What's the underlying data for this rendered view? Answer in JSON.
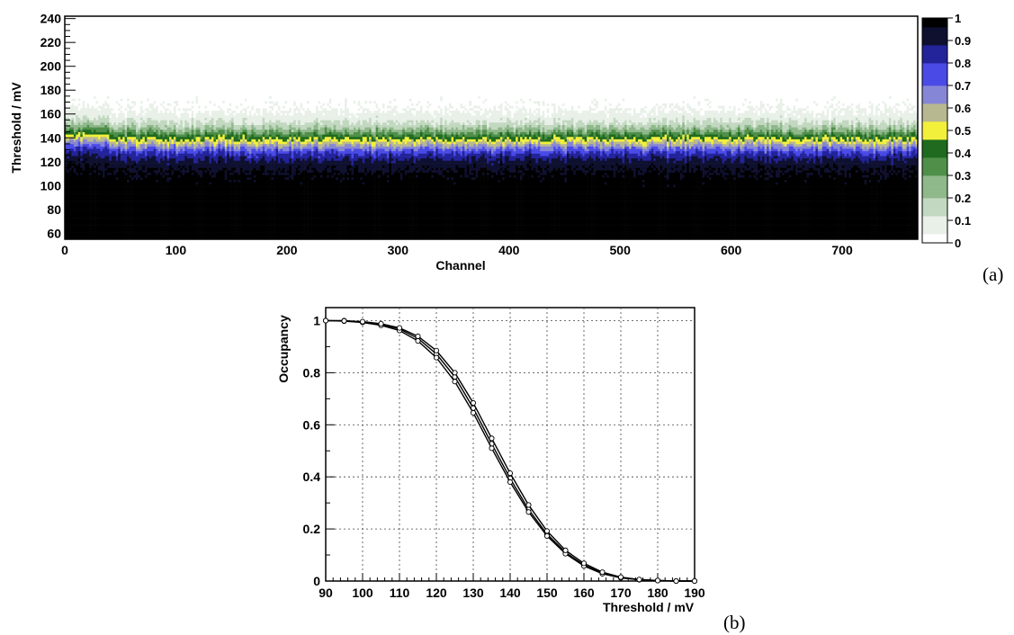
{
  "panels": {
    "a_label": "(a)",
    "b_label": "(b)"
  },
  "chart_data": [
    {
      "type": "heatmap",
      "panel": "(a)",
      "xlabel": "Channel",
      "ylabel": "Threshold / mV",
      "xlim": [
        0,
        768
      ],
      "ylim": [
        55,
        242
      ],
      "x_ticks": [
        "0",
        "100",
        "200",
        "300",
        "400",
        "500",
        "600",
        "700"
      ],
      "y_ticks": [
        "60",
        "80",
        "100",
        "120",
        "140",
        "160",
        "180",
        "200",
        "220",
        "240"
      ],
      "colorbar": {
        "range": [
          0,
          1
        ],
        "ticks": [
          "0",
          "0.1",
          "0.2",
          "0.3",
          "0.4",
          "0.5",
          "0.6",
          "0.7",
          "0.8",
          "0.9",
          "1"
        ]
      },
      "threshold_50pct_mV": 137,
      "transition_width_mV": 8,
      "occupancy_profile": [
        {
          "threshold": 100,
          "occupancy": 1.0
        },
        {
          "threshold": 110,
          "occupancy": 0.96
        },
        {
          "threshold": 120,
          "occupancy": 0.86
        },
        {
          "threshold": 125,
          "occupancy": 0.78
        },
        {
          "threshold": 130,
          "occupancy": 0.66
        },
        {
          "threshold": 135,
          "occupancy": 0.52
        },
        {
          "threshold": 140,
          "occupancy": 0.4
        },
        {
          "threshold": 145,
          "occupancy": 0.28
        },
        {
          "threshold": 150,
          "occupancy": 0.18
        },
        {
          "threshold": 160,
          "occupancy": 0.04
        },
        {
          "threshold": 170,
          "occupancy": 0.005
        }
      ],
      "colors": [
        "#ffffff",
        "#e8f0e8",
        "#c2d8c0",
        "#8fb88b",
        "#4f8f4a",
        "#1f6a1f",
        "#f3f03c",
        "#b8b890",
        "#8686d6",
        "#4a4ae6",
        "#23239a",
        "#0f1030",
        "#000000"
      ]
    },
    {
      "type": "scatter",
      "panel": "(b)",
      "xlabel": "Threshold /  mV",
      "ylabel": "Occupancy",
      "xlim": [
        90,
        190
      ],
      "ylim": [
        0,
        1.05
      ],
      "x_ticks": [
        "90",
        "100",
        "110",
        "120",
        "130",
        "140",
        "150",
        "160",
        "170",
        "180",
        "190"
      ],
      "y_ticks": [
        "0",
        "0.2",
        "0.4",
        "0.6",
        "0.8",
        "1"
      ],
      "grid": true,
      "x": [
        90,
        95,
        100,
        105,
        110,
        115,
        120,
        125,
        130,
        135,
        140,
        145,
        150,
        155,
        160,
        165,
        170,
        175,
        180,
        185,
        190
      ],
      "series": [
        {
          "values": [
            1.0,
            1.0,
            0.995,
            0.985,
            0.968,
            0.932,
            0.872,
            0.784,
            0.664,
            0.527,
            0.394,
            0.275,
            0.18,
            0.11,
            0.062,
            0.03,
            0.013,
            0.005,
            0.002,
            0.0,
            0.0
          ]
        },
        {
          "values": [
            1.0,
            0.998,
            0.993,
            0.982,
            0.962,
            0.922,
            0.858,
            0.766,
            0.646,
            0.51,
            0.38,
            0.265,
            0.173,
            0.105,
            0.058,
            0.028,
            0.012,
            0.005,
            0.002,
            0.0,
            0.0
          ]
        },
        {
          "values": [
            1.0,
            0.999,
            0.996,
            0.988,
            0.972,
            0.94,
            0.885,
            0.8,
            0.684,
            0.548,
            0.414,
            0.292,
            0.192,
            0.118,
            0.068,
            0.034,
            0.015,
            0.006,
            0.002,
            0.0,
            0.0
          ]
        }
      ]
    }
  ]
}
